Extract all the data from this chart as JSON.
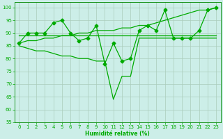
{
  "xlabel": "Humidité relative (%)",
  "bg_color": "#cceee8",
  "grid_color": "#aaccbb",
  "line_color": "#00aa00",
  "xlim": [
    -0.5,
    23.5
  ],
  "ylim": [
    55,
    102
  ],
  "yticks": [
    55,
    60,
    65,
    70,
    75,
    80,
    85,
    90,
    95,
    100
  ],
  "xticks": [
    0,
    1,
    2,
    3,
    4,
    5,
    6,
    7,
    8,
    9,
    10,
    11,
    12,
    13,
    14,
    15,
    16,
    17,
    18,
    19,
    20,
    21,
    22,
    23
  ],
  "line_zigzag_x": [
    0,
    1,
    2,
    3,
    4,
    5,
    6,
    7,
    8,
    9,
    10,
    11,
    12,
    13,
    14,
    15,
    16,
    17,
    18,
    19,
    20,
    21,
    22,
    23
  ],
  "line_zigzag_y": [
    86,
    90,
    90,
    90,
    94,
    95,
    90,
    87,
    88,
    93,
    78,
    86,
    79,
    80,
    91,
    93,
    91,
    99,
    88,
    88,
    88,
    91,
    99,
    100
  ],
  "line_flat_x": [
    0,
    1,
    2,
    3,
    4,
    5,
    6,
    7,
    8,
    9,
    10,
    11,
    12,
    13,
    14,
    15,
    16,
    17,
    18,
    19,
    20,
    21,
    22,
    23
  ],
  "line_flat_y": [
    89,
    89,
    89,
    89,
    89,
    89,
    89,
    89,
    89,
    89,
    89,
    89,
    89,
    89,
    89,
    89,
    89,
    89,
    89,
    89,
    89,
    89,
    89,
    89
  ],
  "line_diag_x": [
    0,
    1,
    2,
    3,
    4,
    5,
    6,
    7,
    8,
    9,
    10,
    11,
    12,
    13,
    14,
    15,
    16,
    17,
    18,
    19,
    20,
    21,
    22,
    23
  ],
  "line_diag_y": [
    86,
    87,
    87,
    88,
    88,
    89,
    89,
    90,
    90,
    91,
    91,
    91,
    92,
    92,
    93,
    93,
    94,
    95,
    96,
    97,
    98,
    99,
    99,
    100
  ],
  "line_low_x": [
    0,
    1,
    2,
    3,
    4,
    5,
    6,
    7,
    8,
    9,
    10,
    11,
    12,
    13,
    14,
    15,
    16,
    17,
    18,
    19,
    20,
    21,
    22,
    23
  ],
  "line_low_y": [
    85,
    84,
    83,
    83,
    82,
    81,
    81,
    80,
    80,
    79,
    79,
    64,
    73,
    73,
    88,
    88,
    88,
    88,
    88,
    88,
    88,
    88,
    88,
    88
  ]
}
